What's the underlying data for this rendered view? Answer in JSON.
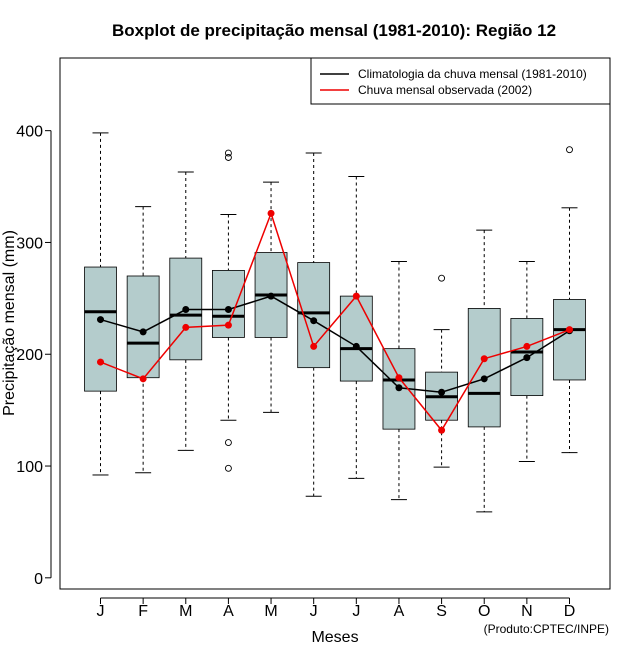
{
  "chart_data": {
    "type": "boxplot",
    "title": "Boxplot de precipitação mensal (1981-2010): Região 12",
    "xlabel": "Meses",
    "ylabel": "Precipitação mensal (mm)",
    "ylim": [
      -10,
      465
    ],
    "yticks": [
      0,
      100,
      200,
      300,
      400
    ],
    "categories": [
      "J",
      "F",
      "M",
      "A",
      "M",
      "J",
      "J",
      "A",
      "S",
      "O",
      "N",
      "D"
    ],
    "boxes": [
      {
        "min": 92,
        "q1": 167,
        "median": 238,
        "q3": 278,
        "max": 398,
        "outliers": []
      },
      {
        "min": 94,
        "q1": 179,
        "median": 210,
        "q3": 270,
        "max": 332,
        "outliers": []
      },
      {
        "min": 114,
        "q1": 195,
        "median": 235,
        "q3": 286,
        "max": 363,
        "outliers": []
      },
      {
        "min": 141,
        "q1": 215,
        "median": 234,
        "q3": 275,
        "max": 325,
        "outliers": [
          98,
          121,
          376,
          380
        ]
      },
      {
        "min": 148,
        "q1": 215,
        "median": 253,
        "q3": 291,
        "max": 354,
        "outliers": []
      },
      {
        "min": 73,
        "q1": 188,
        "median": 237,
        "q3": 282,
        "max": 380,
        "outliers": []
      },
      {
        "min": 89,
        "q1": 176,
        "median": 205,
        "q3": 252,
        "max": 359,
        "outliers": []
      },
      {
        "min": 70,
        "q1": 133,
        "median": 177,
        "q3": 205,
        "max": 283,
        "outliers": []
      },
      {
        "min": 99,
        "q1": 141,
        "median": 162,
        "q3": 184,
        "max": 222,
        "outliers": [
          268
        ]
      },
      {
        "min": 59,
        "q1": 135,
        "median": 165,
        "q3": 241,
        "max": 311,
        "outliers": []
      },
      {
        "min": 104,
        "q1": 163,
        "median": 202,
        "q3": 232,
        "max": 283,
        "outliers": []
      },
      {
        "min": 112,
        "q1": 177,
        "median": 222,
        "q3": 249,
        "max": 331,
        "outliers": [
          383
        ]
      }
    ],
    "series": [
      {
        "name": "Climatologia da chuva mensal (1981-2010)",
        "color": "#000000",
        "values": [
          231,
          220,
          240,
          240,
          252,
          230,
          207,
          170,
          166,
          178,
          197,
          221
        ]
      },
      {
        "name": "Chuva mensal observada (2002)",
        "color": "#ee0000",
        "values": [
          193,
          178,
          224,
          226,
          326,
          207,
          252,
          179,
          132,
          196,
          207,
          222
        ]
      }
    ],
    "box_color": "#b4cccc",
    "legend_position": "top-right"
  },
  "credit": "(Produto:CPTEC/INPE)"
}
